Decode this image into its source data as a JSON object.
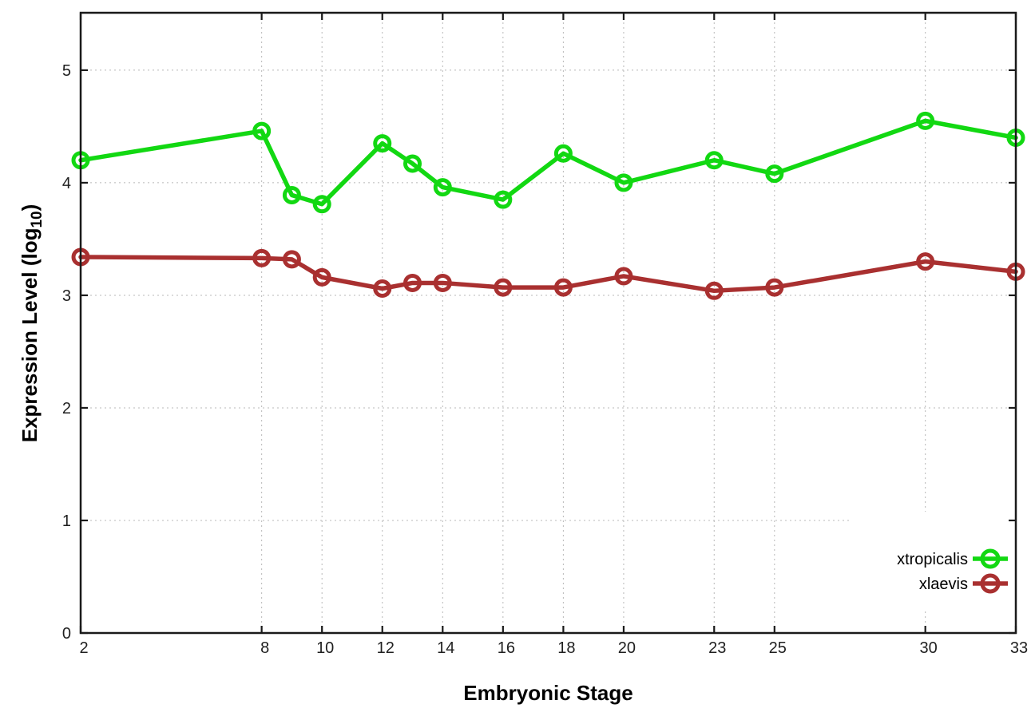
{
  "window": {
    "background_color": "#ffffff"
  },
  "chart_data": {
    "type": "line",
    "title": "",
    "xlabel": "Embryonic Stage",
    "ylabel": "Expression Level (log10)",
    "ylabel_parts": {
      "main": "Expression Level (log",
      "sub": "10",
      "end": ")"
    },
    "x": [
      2,
      8,
      9,
      10,
      12,
      13,
      14,
      16,
      18,
      20,
      23,
      25,
      30,
      33
    ],
    "series": [
      {
        "name": "xtropicalis",
        "color": "#12d812",
        "values": [
          4.2,
          4.46,
          3.89,
          3.81,
          4.35,
          4.17,
          3.96,
          3.85,
          4.26,
          4.0,
          4.2,
          4.08,
          4.55,
          4.4
        ]
      },
      {
        "name": "xlaevis",
        "color": "#a93030",
        "values": [
          3.34,
          3.33,
          3.32,
          3.16,
          3.06,
          3.11,
          3.11,
          3.07,
          3.07,
          3.17,
          3.04,
          3.07,
          3.3,
          3.21
        ]
      }
    ],
    "x_ticks": [
      2,
      8,
      10,
      12,
      14,
      16,
      18,
      20,
      23,
      25,
      30,
      33
    ],
    "y_ticks": [
      0,
      1,
      2,
      3,
      4,
      5
    ],
    "xlim": [
      2,
      33
    ],
    "ylim": [
      0,
      5.51
    ],
    "grid": true,
    "legend": {
      "position": "inside-bottom-right",
      "entries": [
        "xtropicalis",
        "xlaevis"
      ]
    },
    "style": {
      "grid_color": "#b8b8b8",
      "axis_color": "#1a1a1a",
      "tick_text_color": "#1f1f1f",
      "marker": "open-circle",
      "line_width": 5.5,
      "marker_radius": 9
    }
  }
}
